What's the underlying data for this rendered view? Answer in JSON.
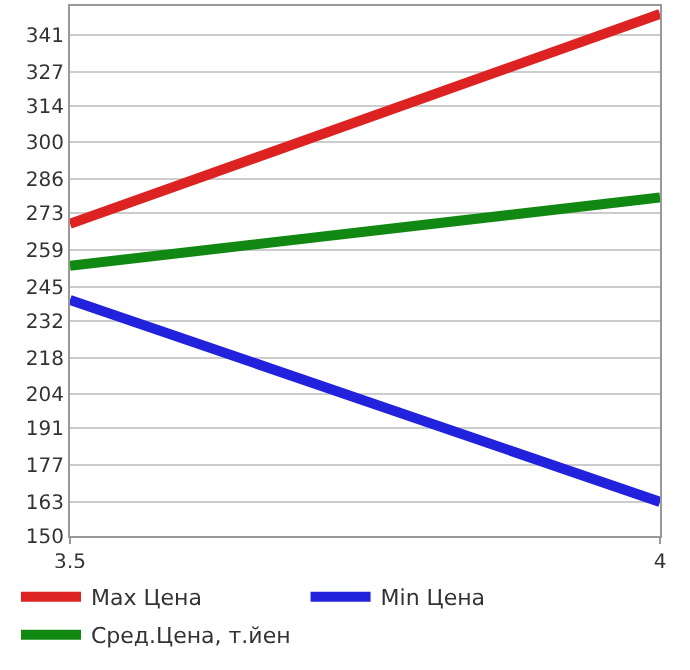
{
  "chart_data": {
    "type": "line",
    "x": [
      3.5,
      4
    ],
    "series": [
      {
        "name": "Max Цена",
        "color": "#dd2222",
        "values": [
          269,
          349
        ]
      },
      {
        "name": "Min Цена",
        "color": "#2222dd",
        "values": [
          240,
          163
        ]
      },
      {
        "name": "Сред.Цена, т.йен",
        "color": "#118811",
        "values": [
          253,
          279
        ]
      }
    ],
    "xlim": [
      3.5,
      4
    ],
    "xticks": [
      {
        "value": 3.5,
        "label": "3,5"
      },
      4
    ],
    "ylim": [
      150,
      352
    ],
    "yticks": [
      150,
      163,
      177,
      191,
      204,
      218,
      232,
      245,
      259,
      273,
      286,
      300,
      314,
      327,
      341
    ],
    "grid": true,
    "legend": "bottom",
    "marker": "none",
    "line_style": "solid"
  }
}
